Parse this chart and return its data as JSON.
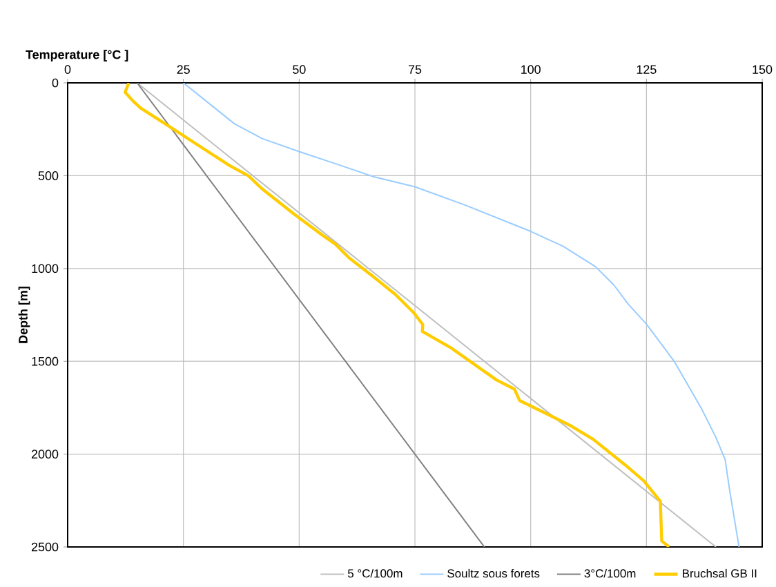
{
  "chart_data": {
    "type": "line",
    "xlabel": "Temperature [°C ]",
    "ylabel": "Depth [m]",
    "xlim": [
      0,
      150
    ],
    "xticks": [
      0,
      25,
      50,
      75,
      100,
      125,
      150
    ],
    "ylim": [
      2500,
      0
    ],
    "yticks": [
      0,
      500,
      1000,
      1500,
      2000,
      2500
    ],
    "grid": true,
    "legend": "bottom",
    "series": [
      {
        "name": "5 °C/100m",
        "color": "#bfbfbf",
        "x": [
          15,
          140
        ],
        "values": [
          0,
          2500
        ]
      },
      {
        "name": "Soultz sous forets",
        "color": "#99ccff",
        "x": [
          25,
          30,
          36,
          42,
          50,
          59,
          66,
          75,
          86,
          96,
          100,
          107,
          114,
          116,
          118,
          121,
          125,
          131,
          137,
          140,
          142,
          143,
          144,
          145
        ],
        "values": [
          0,
          100,
          220,
          300,
          370,
          445,
          505,
          560,
          660,
          760,
          800,
          880,
          990,
          1040,
          1090,
          1190,
          1300,
          1500,
          1760,
          1910,
          2030,
          2200,
          2350,
          2500
        ]
      },
      {
        "name": "3°C/100m",
        "color": "#808080",
        "x": [
          15,
          90
        ],
        "values": [
          0,
          2500
        ]
      },
      {
        "name": "Bruchsal GB II",
        "color": "#ffcc00",
        "x": [
          13.2,
          12.4,
          14.2,
          15.8,
          21.2,
          27.2,
          35,
          39,
          42,
          48.9,
          54.9,
          57.8,
          60.8,
          65.9,
          70.8,
          74.8,
          76.7,
          76.6,
          82.7,
          92.6,
          96.5,
          97.6,
          105.5,
          108.5,
          113.5,
          120.4,
          124.4,
          128,
          128.3,
          129.9
        ],
        "values": [
          0,
          50,
          100,
          136,
          223,
          320,
          446,
          500,
          571,
          707,
          818,
          868,
          943,
          1042,
          1140,
          1240,
          1302,
          1339,
          1426,
          1600,
          1650,
          1711,
          1808,
          1845,
          1920,
          2058,
          2143,
          2254,
          2468,
          2500
        ]
      }
    ]
  }
}
